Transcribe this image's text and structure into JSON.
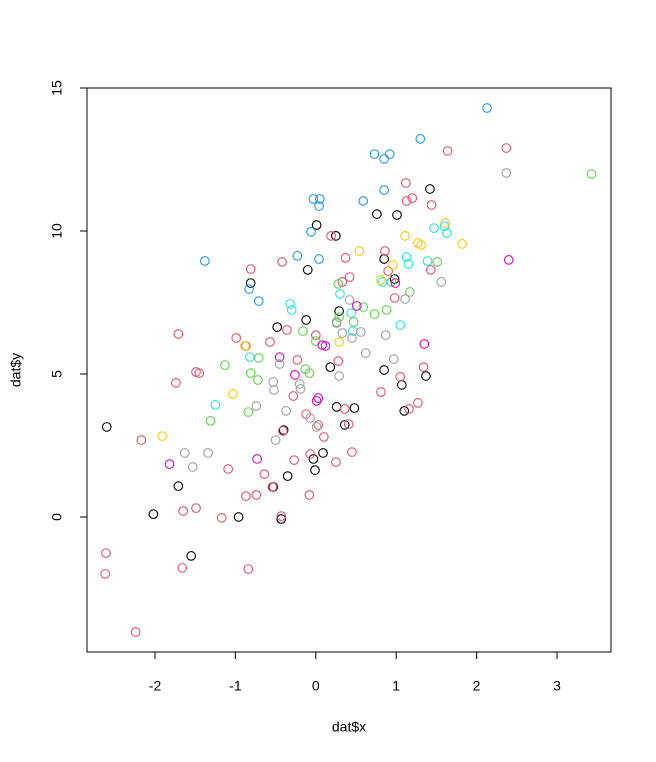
{
  "chart_data": {
    "type": "scatter",
    "xlabel": "dat$x",
    "ylabel": "dat$y",
    "xlim": [
      -2.846,
      3.672
    ],
    "ylim": [
      -4.72,
      15.0
    ],
    "xticks": [
      -2,
      -1,
      0,
      1,
      2,
      3
    ],
    "yticks": [
      0,
      5,
      10,
      15
    ],
    "series": [
      {
        "color": "#000000",
        "x": [
          -2.6,
          -2.02,
          -1.71,
          -1.55,
          -0.96,
          -0.81,
          -0.48,
          -0.53,
          -0.43,
          -0.4,
          -0.35,
          -0.1,
          -0.12,
          -0.03,
          -0.01,
          0.01,
          0.09,
          0.18,
          0.25,
          0.26,
          0.29,
          0.36,
          0.48,
          0.76,
          0.85,
          0.85,
          1.01,
          0.98,
          1.07,
          1.1,
          1.37,
          1.42
        ],
        "values": [
          3.15,
          0.1,
          1.08,
          -1.36,
          0,
          8.18,
          6.64,
          1.05,
          -0.07,
          3.04,
          1.43,
          8.64,
          6.89,
          2.03,
          1.64,
          10.21,
          2.24,
          5.24,
          9.83,
          3.85,
          7.2,
          3.22,
          3.81,
          10.59,
          9.02,
          5.14,
          10.56,
          8.32,
          4.62,
          3.71,
          4.93,
          11.47
        ]
      },
      {
        "color": "#DF536B",
        "x": [
          -2.61,
          -2.62,
          -2.24,
          -2.17,
          -1.71,
          -1.74,
          -1.65,
          -1.66,
          -1.49,
          -1.45,
          -1.49,
          -1.17,
          -1.09,
          -0.99,
          -0.87,
          -0.87,
          -0.84,
          -0.81,
          -0.74,
          -0.64,
          -0.54,
          -0.57,
          -0.42,
          -0.43,
          -0.41,
          -0.36,
          -0.28,
          -0.27,
          -0.23,
          -0.12,
          -0.08,
          -0.07,
          0,
          0.03,
          0.1,
          0.19,
          0.25,
          0.28,
          0.33,
          0.36,
          0.41,
          0.42,
          0.45,
          0.37,
          0.86,
          0.81,
          0.9,
          0.98,
          1.05,
          1.12,
          1.13,
          1.2,
          1.16,
          1.27,
          1.34,
          1.44,
          1.64,
          2.37,
          1.43
        ],
        "values": [
          -1.26,
          -1.99,
          -4.02,
          2.69,
          6.4,
          4.69,
          0.21,
          -1.78,
          0.31,
          5.03,
          5.07,
          -0.03,
          1.68,
          6.26,
          5.98,
          0.73,
          -1.82,
          8.67,
          0.77,
          1.5,
          1.05,
          6.12,
          8.92,
          0.03,
          3.01,
          6.54,
          4.23,
          1.99,
          5.49,
          3.6,
          0.77,
          2.2,
          6.36,
          3.22,
          2.8,
          9.83,
          1.92,
          5.45,
          8.22,
          3.78,
          3.25,
          8.39,
          2.27,
          9.06,
          9.3,
          4.37,
          8.6,
          7.66,
          4.9,
          11.68,
          11.05,
          11.15,
          3.78,
          3.99,
          5.24,
          10.91,
          12.8,
          12.9,
          8.64
        ]
      },
      {
        "color": "#61D04F",
        "x": [
          -1.13,
          -1.31,
          -0.84,
          -0.81,
          -0.71,
          -0.72,
          -0.16,
          -0.13,
          -0.08,
          0,
          0.28,
          0.29,
          0.26,
          0.47,
          0.59,
          0.73,
          0.88,
          0.94,
          1.17,
          1.51,
          3.43
        ],
        "values": [
          5.31,
          3.36,
          3.67,
          5.03,
          5.56,
          4.79,
          6.5,
          5.17,
          5.03,
          6.15,
          8.15,
          6.99,
          6.82,
          6.82,
          7.34,
          7.1,
          7.24,
          8.22,
          7.87,
          8.92,
          11.99
        ]
      },
      {
        "color": "#2297E6",
        "x": [
          -1.38,
          -0.83,
          -0.71,
          -0.23,
          -0.06,
          -0.03,
          0.05,
          0.04,
          0.04,
          0.59,
          0.73,
          0.85,
          0.92,
          0.85,
          1.3,
          2.13
        ],
        "values": [
          8.95,
          7.97,
          7.55,
          9.13,
          9.97,
          11.12,
          11.12,
          10.87,
          9.02,
          11.05,
          12.69,
          12.52,
          12.69,
          11.43,
          13.22,
          14.3
        ]
      },
      {
        "color": "#28E2E5",
        "x": [
          -1.25,
          -0.82,
          -0.32,
          -0.3,
          0.3,
          0.44,
          0.46,
          0.83,
          1.05,
          1.13,
          1.15,
          1.39,
          1.47,
          1.6,
          1.63
        ],
        "values": [
          3.92,
          5.59,
          7.45,
          7.24,
          7.8,
          7.13,
          6.5,
          8.22,
          6.71,
          9.09,
          8.85,
          8.95,
          10.1,
          10.17,
          9.93
        ]
      },
      {
        "color": "#CD0BBC",
        "x": [
          -1.82,
          -0.73,
          -0.45,
          -0.26,
          0.03,
          0.12,
          0.08,
          0.51,
          0.99,
          1.35,
          2.4,
          0.01
        ],
        "values": [
          1.85,
          2.03,
          5.59,
          4.97,
          4.16,
          5.98,
          6.01,
          7.38,
          8.18,
          6.05,
          8.99,
          4.06
        ]
      },
      {
        "color": "#F5C710",
        "x": [
          -1.91,
          -1.03,
          -0.88,
          0.29,
          0.54,
          0.81,
          0.96,
          1.11,
          1.27,
          1.31,
          1.61,
          1.82
        ],
        "values": [
          2.83,
          4.3,
          5.98,
          6.12,
          9.3,
          8.29,
          8.81,
          9.83,
          9.58,
          9.51,
          10.28,
          9.55
        ]
      },
      {
        "color": "#9E9E9E",
        "x": [
          -1.63,
          -1.53,
          -1.34,
          -0.74,
          -0.53,
          -0.52,
          -0.5,
          -0.45,
          -0.37,
          -0.2,
          -0.19,
          -0.07,
          0.01,
          0.29,
          0.26,
          0.33,
          0.42,
          0.56,
          0.45,
          0.62,
          0.87,
          0.97,
          1.11,
          1.56,
          2.37
        ],
        "values": [
          2.24,
          1.75,
          2.24,
          3.88,
          4.72,
          4.44,
          2.69,
          5.35,
          3.71,
          4.65,
          4.48,
          3.46,
          3.15,
          4.93,
          6.78,
          6.43,
          7.59,
          6.47,
          6.26,
          5.73,
          6.36,
          5.52,
          7.62,
          8.22,
          12.03
        ]
      }
    ]
  }
}
